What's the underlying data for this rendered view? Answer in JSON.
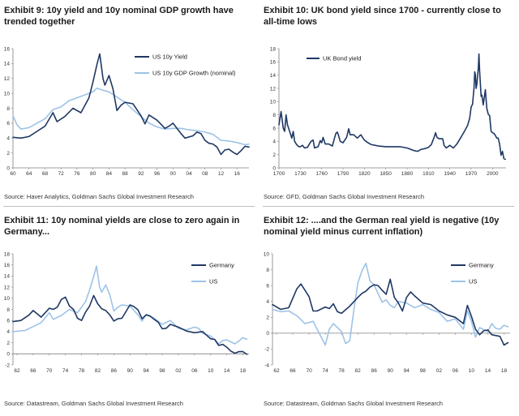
{
  "chart_data": [
    {
      "id": "ex9",
      "type": "line",
      "title": "Exhibit 9: 10y yield and 10y nominal GDP growth have trended together",
      "source": "Source: Haver Analytics, Goldman Sachs Global Investment Research",
      "xlabel": "",
      "ylabel": "",
      "xlim": [
        1960,
        2019
      ],
      "ylim": [
        0,
        16
      ],
      "xticks": [
        60,
        64,
        68,
        72,
        76,
        80,
        84,
        88,
        92,
        96,
        0,
        4,
        8,
        12,
        16
      ],
      "xtick_labels": [
        "60",
        "64",
        "68",
        "72",
        "76",
        "80",
        "84",
        "88",
        "92",
        "96",
        "00",
        "04",
        "08",
        "12",
        "16"
      ],
      "yticks": [
        0,
        2,
        4,
        6,
        8,
        10,
        12,
        14,
        16
      ],
      "legend": "top-right",
      "series": [
        {
          "name": "US 10y Yield",
          "color": "#1f3864",
          "x": [
            1960,
            1962,
            1964,
            1966,
            1968,
            1970,
            1971,
            1973,
            1975,
            1977,
            1978,
            1979,
            1980,
            1981,
            1981.7,
            1982.5,
            1983,
            1984,
            1985,
            1986,
            1987,
            1988,
            1990,
            1992,
            1993,
            1994,
            1996,
            1998,
            1999,
            2000,
            2002,
            2003,
            2005,
            2006,
            2007,
            2008,
            2009,
            2010,
            2011,
            2012,
            2013,
            2014,
            2015,
            2016,
            2017,
            2018,
            2019
          ],
          "y": [
            4.1,
            4.0,
            4.2,
            4.9,
            5.6,
            7.4,
            6.2,
            6.9,
            8.0,
            7.4,
            8.4,
            9.4,
            11.5,
            13.9,
            15.3,
            12.0,
            11.1,
            12.4,
            10.6,
            7.7,
            8.4,
            8.8,
            8.6,
            7.0,
            5.9,
            7.1,
            6.4,
            5.3,
            5.6,
            6.0,
            4.6,
            4.0,
            4.3,
            4.8,
            4.6,
            3.7,
            3.3,
            3.2,
            2.8,
            1.8,
            2.4,
            2.5,
            2.1,
            1.8,
            2.3,
            2.9,
            2.8
          ]
        },
        {
          "name": "US 10y GDP Growth (nominal)",
          "color": "#9dc3e6",
          "x": [
            1960,
            1961,
            1962,
            1964,
            1966,
            1968,
            1970,
            1972,
            1974,
            1976,
            1978,
            1980,
            1981,
            1982,
            1984,
            1986,
            1988,
            1990,
            1992,
            1994,
            1996,
            1998,
            2000,
            2002,
            2004,
            2006,
            2008,
            2010,
            2012,
            2014,
            2016,
            2018,
            2019
          ],
          "y": [
            7.0,
            5.8,
            5.2,
            5.4,
            6.0,
            6.6,
            7.8,
            8.2,
            9.0,
            9.4,
            9.8,
            10.2,
            10.7,
            10.5,
            10.2,
            9.5,
            8.8,
            7.8,
            6.9,
            6.0,
            5.5,
            5.2,
            5.3,
            5.3,
            5.1,
            5.0,
            4.8,
            4.5,
            3.7,
            3.6,
            3.4,
            3.1,
            3.2
          ]
        }
      ]
    },
    {
      "id": "ex10",
      "type": "line",
      "title": "Exhibit 10: UK bond yield since 1700 - currently close to all-time lows",
      "source": "Source: GFD, Goldman Sachs Global Investment Research",
      "xlabel": "",
      "ylabel": "",
      "xlim": [
        1700,
        2019
      ],
      "ylim": [
        0,
        18
      ],
      "xticks": [
        1700,
        1730,
        1760,
        1790,
        1820,
        1850,
        1880,
        1910,
        1940,
        1970,
        2000
      ],
      "xtick_labels": [
        "1700",
        "1730",
        "1760",
        "1790",
        "1820",
        "1850",
        "1880",
        "1910",
        "1940",
        "1970",
        "2000"
      ],
      "yticks": [
        0,
        2,
        4,
        6,
        8,
        10,
        12,
        14,
        16,
        18
      ],
      "legend": "top-left",
      "series": [
        {
          "name": "UK Bond yield",
          "color": "#1f3864",
          "x": [
            1700,
            1703,
            1706,
            1708,
            1710,
            1712,
            1715,
            1718,
            1720,
            1722,
            1725,
            1728,
            1730,
            1733,
            1736,
            1740,
            1745,
            1748,
            1750,
            1755,
            1758,
            1760,
            1762,
            1765,
            1770,
            1775,
            1778,
            1780,
            1782,
            1784,
            1786,
            1790,
            1795,
            1798,
            1800,
            1805,
            1810,
            1815,
            1820,
            1825,
            1830,
            1835,
            1840,
            1850,
            1860,
            1870,
            1880,
            1890,
            1895,
            1900,
            1905,
            1910,
            1914,
            1918,
            1920,
            1922,
            1925,
            1930,
            1932,
            1935,
            1940,
            1945,
            1950,
            1955,
            1960,
            1965,
            1968,
            1970,
            1972,
            1974,
            1975,
            1976,
            1977,
            1978,
            1980,
            1981,
            1982,
            1984,
            1985,
            1987,
            1990,
            1992,
            1994,
            1996,
            1998,
            2000,
            2002,
            2004,
            2006,
            2008,
            2010,
            2012,
            2014,
            2016,
            2018
          ],
          "y": [
            6.5,
            8.5,
            6.0,
            5.5,
            8.0,
            6.5,
            5.5,
            4.5,
            5.5,
            4.0,
            3.5,
            3.2,
            3.2,
            3.4,
            3.0,
            3.1,
            4.0,
            4.2,
            3.0,
            3.2,
            4.1,
            3.8,
            4.6,
            3.6,
            3.6,
            3.3,
            4.5,
            5.2,
            5.4,
            4.8,
            4.0,
            3.8,
            4.6,
            5.9,
            5.0,
            5.0,
            4.5,
            5.0,
            4.2,
            3.8,
            3.5,
            3.4,
            3.3,
            3.2,
            3.2,
            3.2,
            3.0,
            2.6,
            2.5,
            2.8,
            2.9,
            3.1,
            3.5,
            4.6,
            5.3,
            4.6,
            4.4,
            4.4,
            3.4,
            3.0,
            3.4,
            3.0,
            3.6,
            4.5,
            5.4,
            6.4,
            7.5,
            9.2,
            9.6,
            12.0,
            14.5,
            14.0,
            12.0,
            12.6,
            15.0,
            17.2,
            14.5,
            10.8,
            11.0,
            9.5,
            11.8,
            9.0,
            8.1,
            7.9,
            5.5,
            5.3,
            5.2,
            4.9,
            4.5,
            4.5,
            3.6,
            1.9,
            2.5,
            1.4,
            1.3
          ]
        }
      ]
    },
    {
      "id": "ex11",
      "type": "line",
      "title": "Exhibit 11: 10y nominal yields are close to zero again in Germany...",
      "source": "Source: Datastream, Goldman Sachs Global Investment Research",
      "xlabel": "",
      "ylabel": "",
      "xlim": [
        1961,
        2019.5
      ],
      "ylim": [
        -2,
        18
      ],
      "xticks": [
        62,
        66,
        70,
        74,
        78,
        82,
        86,
        90,
        94,
        98,
        2,
        6,
        10,
        14,
        18
      ],
      "xtick_labels": [
        "62",
        "66",
        "70",
        "74",
        "78",
        "82",
        "86",
        "90",
        "94",
        "98",
        "02",
        "06",
        "10",
        "14",
        "18"
      ],
      "yticks": [
        -2,
        0,
        2,
        4,
        6,
        8,
        10,
        12,
        14,
        16,
        18
      ],
      "legend": "top-right",
      "series": [
        {
          "name": "Germany",
          "color": "#1f3864",
          "x": [
            1961,
            1963,
            1965,
            1966,
            1968,
            1970,
            1971,
            1972,
            1973,
            1974,
            1975,
            1976,
            1977,
            1978,
            1979,
            1980,
            1981,
            1982,
            1983,
            1984,
            1985,
            1986,
            1987,
            1988,
            1990,
            1991,
            1992,
            1993,
            1994,
            1995,
            1996,
            1997,
            1998,
            1999,
            2000,
            2002,
            2004,
            2006,
            2008,
            2010,
            2011,
            2012,
            2013,
            2014,
            2015,
            2016,
            2017,
            2018,
            2019
          ],
          "y": [
            5.8,
            6.0,
            7.0,
            7.8,
            6.6,
            8.2,
            8.0,
            8.4,
            9.8,
            10.2,
            8.6,
            8.0,
            6.4,
            6.0,
            7.5,
            8.6,
            10.5,
            9.0,
            8.1,
            7.8,
            7.0,
            5.9,
            6.3,
            6.4,
            8.8,
            8.5,
            7.9,
            6.3,
            7.0,
            6.8,
            6.2,
            5.7,
            4.5,
            4.6,
            5.3,
            4.8,
            4.1,
            3.8,
            4.0,
            2.7,
            2.6,
            1.5,
            1.7,
            1.2,
            0.5,
            0.1,
            0.4,
            0.4,
            -0.1
          ]
        },
        {
          "name": "US",
          "color": "#9dc3e6",
          "x": [
            1961,
            1964,
            1966,
            1968,
            1970,
            1971,
            1973,
            1975,
            1977,
            1978,
            1979,
            1980,
            1981,
            1981.7,
            1982.5,
            1983,
            1984,
            1985,
            1986,
            1987,
            1988,
            1990,
            1992,
            1993,
            1994,
            1996,
            1998,
            2000,
            2002,
            2004,
            2006,
            2007,
            2008,
            2010,
            2012,
            2013,
            2014,
            2016,
            2017,
            2018,
            2019
          ],
          "y": [
            4.0,
            4.2,
            4.9,
            5.6,
            7.4,
            6.2,
            6.9,
            8.0,
            7.4,
            8.4,
            9.4,
            11.5,
            13.9,
            15.8,
            12.0,
            11.1,
            12.4,
            10.6,
            7.7,
            8.4,
            8.8,
            8.6,
            7.0,
            5.9,
            7.1,
            6.4,
            5.3,
            6.0,
            4.6,
            4.3,
            4.8,
            4.6,
            3.7,
            3.2,
            1.8,
            2.4,
            2.5,
            1.8,
            2.3,
            2.9,
            2.6
          ]
        }
      ]
    },
    {
      "id": "ex12",
      "type": "line",
      "title": "Exhibit 12: ....and the German real yield is negative (10y nominal yield minus current inflation)",
      "source": "Source: Datastream, Goldman Sachs Global Investment Research",
      "xlabel": "",
      "ylabel": "",
      "xlim": [
        1961,
        2019.5
      ],
      "ylim": [
        -4,
        10
      ],
      "xticks": [
        62,
        66,
        70,
        74,
        78,
        82,
        86,
        90,
        94,
        98,
        2,
        6,
        10,
        14,
        18
      ],
      "xtick_labels": [
        "62",
        "66",
        "70",
        "74",
        "78",
        "82",
        "86",
        "90",
        "94",
        "98",
        "02",
        "06",
        "10",
        "14",
        "18"
      ],
      "yticks": [
        -4,
        -2,
        0,
        2,
        4,
        6,
        8,
        10
      ],
      "legend": "top-right",
      "series": [
        {
          "name": "Germany",
          "color": "#1f3864",
          "x": [
            1961,
            1963,
            1965,
            1967,
            1968,
            1970,
            1971,
            1972,
            1974,
            1975,
            1976,
            1977,
            1978,
            1980,
            1982,
            1983,
            1984,
            1985,
            1986,
            1987,
            1988,
            1989,
            1990,
            1991,
            1992,
            1993,
            1994,
            1995,
            1996,
            1998,
            2000,
            2002,
            2004,
            2006,
            2008,
            2009,
            2010,
            2011,
            2012,
            2013,
            2014,
            2015,
            2016,
            2017,
            2018,
            2019
          ],
          "y": [
            3.6,
            3.0,
            3.2,
            5.6,
            6.2,
            4.6,
            2.8,
            2.8,
            3.3,
            3.1,
            3.7,
            2.7,
            2.5,
            3.4,
            4.5,
            5.0,
            5.3,
            5.8,
            6.1,
            6.0,
            5.4,
            4.9,
            6.8,
            4.5,
            3.8,
            2.8,
            4.5,
            5.2,
            4.7,
            3.8,
            3.6,
            2.8,
            2.3,
            2.0,
            1.2,
            3.5,
            2.1,
            0.5,
            -0.2,
            0.3,
            0.4,
            -0.2,
            -0.3,
            -0.4,
            -1.5,
            -1.2
          ]
        },
        {
          "name": "US",
          "color": "#9dc3e6",
          "x": [
            1961,
            1963,
            1965,
            1967,
            1969,
            1971,
            1973,
            1974,
            1975,
            1976,
            1978,
            1979,
            1980,
            1981,
            1982,
            1983,
            1984,
            1985,
            1986,
            1987,
            1988,
            1989,
            1990,
            1991,
            1992,
            1994,
            1996,
            1998,
            2000,
            2002,
            2004,
            2006,
            2008,
            2009,
            2010,
            2011,
            2012,
            2014,
            2015,
            2016,
            2017,
            2018,
            2019
          ],
          "y": [
            3.0,
            2.7,
            2.8,
            2.2,
            1.2,
            1.5,
            -0.5,
            -1.5,
            0.5,
            1.2,
            0.2,
            -1.3,
            -1.0,
            2.8,
            6.3,
            7.8,
            8.8,
            6.6,
            6.1,
            5.0,
            3.9,
            4.2,
            3.5,
            3.2,
            4.0,
            3.8,
            3.2,
            3.6,
            3.0,
            2.6,
            1.5,
            1.8,
            0.5,
            2.8,
            1.5,
            -0.5,
            0.7,
            0.2,
            1.2,
            0.6,
            0.5,
            1.0,
            0.8
          ]
        }
      ]
    }
  ]
}
